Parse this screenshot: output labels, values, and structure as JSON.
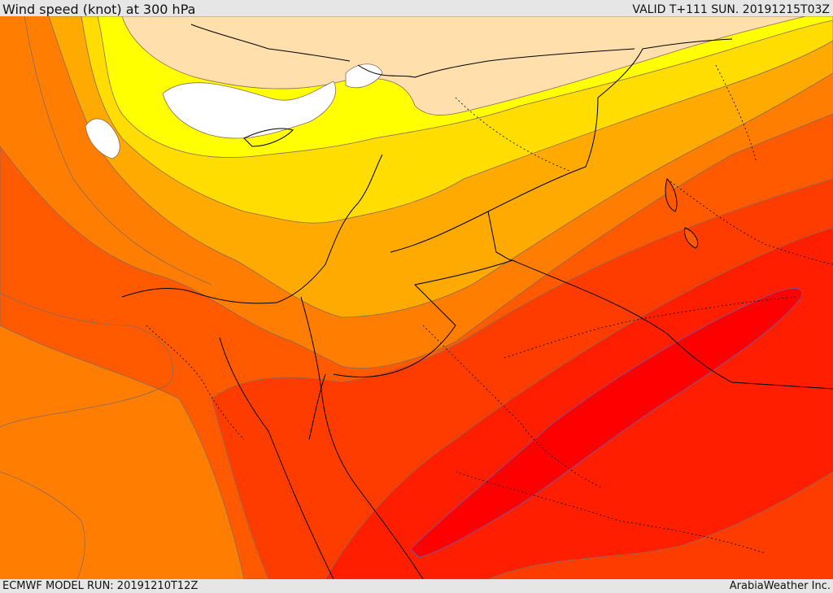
{
  "header": {
    "title": "Wind speed (knot) at 300 hPa",
    "valid": "VALID T+111 SUN. 20191215T03Z"
  },
  "footer": {
    "model_run": "ECMWF MODEL RUN: 20191210T12Z",
    "credit": "ArabiaWeather Inc."
  },
  "colors": {
    "calm": "#ffffff",
    "light": "#ffdfab",
    "yellow": "#ffff00",
    "gold": "#ffdd00",
    "amber": "#ffaa00",
    "orange": "#ff7d00",
    "dark_orange": "#ff5a00",
    "red_orange": "#ff3c00",
    "red": "#ff1e00",
    "core": "#ff0000",
    "contour": "#8a6a5a",
    "border": "#000000"
  }
}
